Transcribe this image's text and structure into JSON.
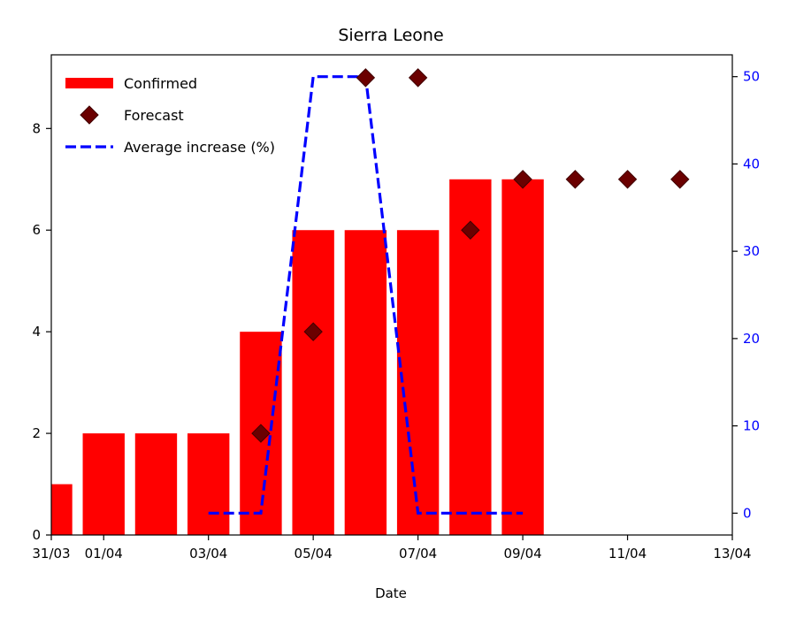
{
  "chart_data": {
    "type": "bar",
    "title": "Sierra Leone",
    "xlabel": "Date",
    "ylabel": "",
    "y2label": "",
    "x_ticks": [
      "31/03",
      "01/04",
      "03/04",
      "05/04",
      "07/04",
      "09/04",
      "11/04",
      "13/04"
    ],
    "y_ticks": [
      0,
      2,
      4,
      6,
      8
    ],
    "y2_ticks": [
      0,
      10,
      20,
      30,
      40,
      50
    ],
    "legend_position": "top-left",
    "legend": [
      {
        "key": "confirmed",
        "label": "Confirmed"
      },
      {
        "key": "forecast",
        "label": "Forecast"
      },
      {
        "key": "average",
        "label": "Average increase (%)"
      }
    ],
    "series": [
      {
        "name": "Confirmed",
        "type": "bar",
        "color": "#ff0000",
        "x": [
          "31/03",
          "01/04",
          "02/04",
          "03/04",
          "04/04",
          "05/04",
          "06/04",
          "07/04",
          "08/04",
          "09/04"
        ],
        "values": [
          1,
          2,
          2,
          2,
          4,
          6,
          6,
          6,
          7,
          7
        ]
      },
      {
        "name": "Forecast",
        "type": "scatter",
        "color": "#6b0000",
        "x": [
          "04/04",
          "05/04",
          "06/04",
          "07/04",
          "08/04",
          "09/04",
          "10/04",
          "11/04",
          "12/04"
        ],
        "values": [
          2,
          4,
          9,
          9,
          6,
          7,
          7,
          7,
          7
        ]
      },
      {
        "name": "Average increase (%)",
        "type": "line",
        "axis": "right",
        "color": "#0000ff",
        "x": [
          "03/04",
          "04/04",
          "05/04",
          "06/04",
          "07/04",
          "08/04",
          "09/04"
        ],
        "values": [
          0,
          0,
          50,
          50,
          0,
          0,
          0
        ]
      }
    ]
  }
}
